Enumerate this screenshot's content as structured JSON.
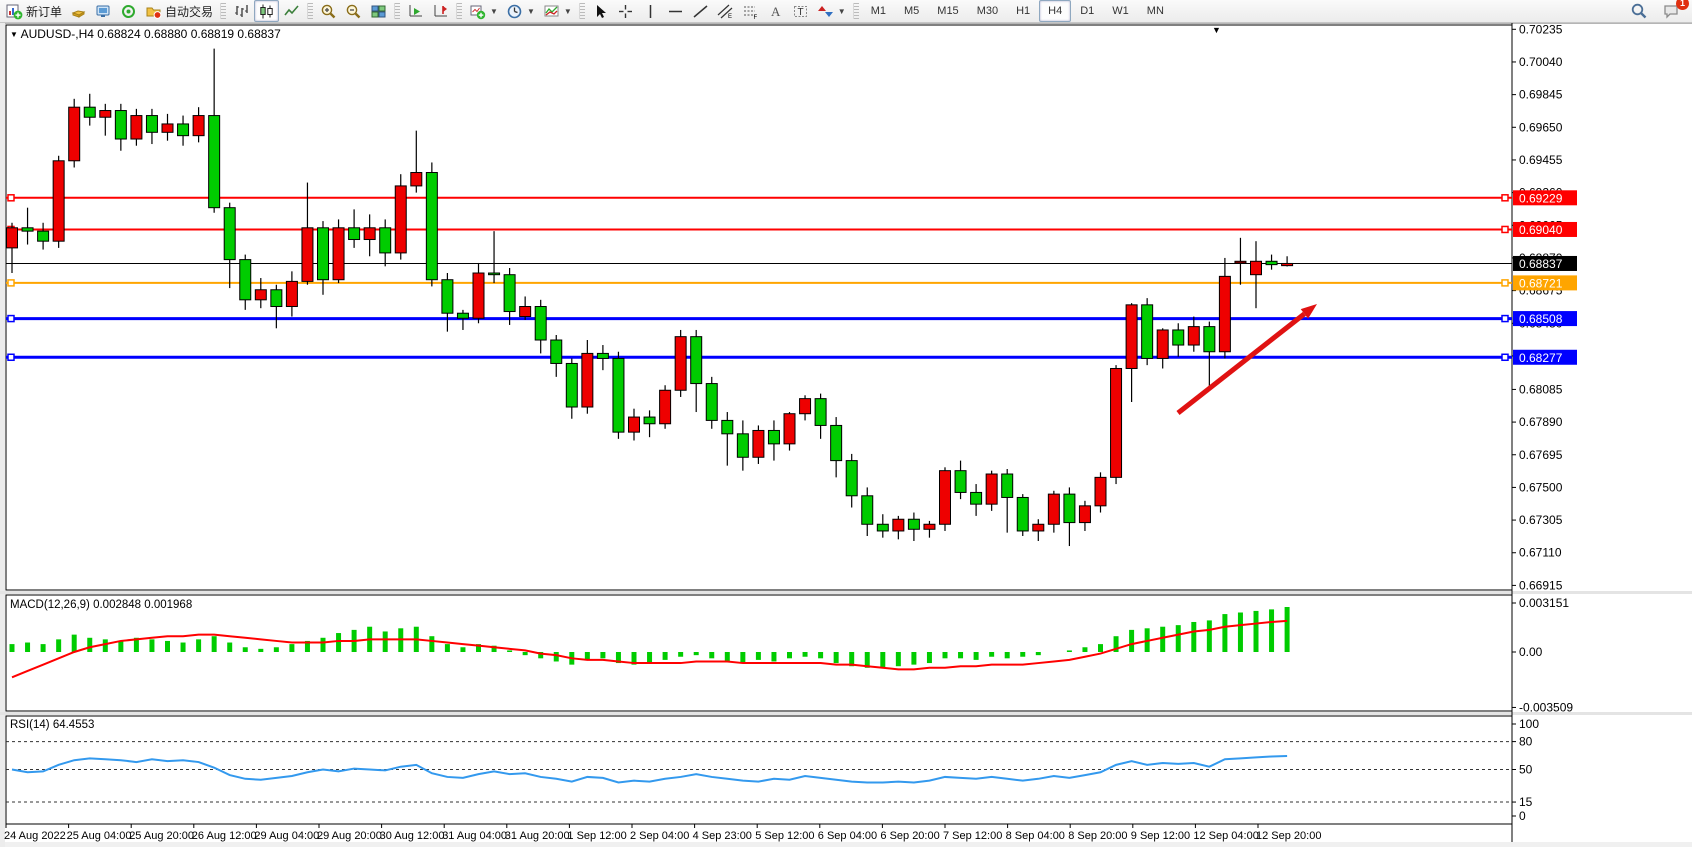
{
  "toolbar": {
    "groups": [
      {
        "name": "trade",
        "buttons": [
          {
            "icon": "new-order",
            "label": "新订单"
          },
          {
            "icon": "market-watch"
          },
          {
            "icon": "navigator"
          },
          {
            "icon": "terminal"
          },
          {
            "icon": "autotrading",
            "label": "自动交易"
          }
        ]
      },
      {
        "name": "chart-type",
        "buttons": [
          {
            "icon": "bar-chart"
          },
          {
            "icon": "candlestick",
            "active": true
          },
          {
            "icon": "line-chart"
          }
        ]
      },
      {
        "name": "zoom",
        "buttons": [
          {
            "icon": "zoom-in"
          },
          {
            "icon": "zoom-out"
          },
          {
            "icon": "tile-windows"
          }
        ]
      },
      {
        "name": "scroll",
        "buttons": [
          {
            "icon": "auto-scroll"
          },
          {
            "icon": "chart-shift"
          }
        ]
      },
      {
        "name": "new",
        "buttons": [
          {
            "icon": "new-chart",
            "dropdown": true
          },
          {
            "icon": "periods",
            "dropdown": true
          },
          {
            "icon": "templates",
            "dropdown": true
          }
        ]
      },
      {
        "name": "drawing",
        "buttons": [
          {
            "icon": "cursor"
          },
          {
            "icon": "crosshair"
          },
          {
            "icon": "vertical-line"
          },
          {
            "icon": "horizontal-line"
          },
          {
            "icon": "trendline"
          },
          {
            "icon": "equidistant-channel"
          },
          {
            "icon": "fibonacci"
          },
          {
            "icon": "text"
          },
          {
            "icon": "text-label"
          },
          {
            "icon": "shapes",
            "dropdown": true
          }
        ]
      },
      {
        "name": "timeframes",
        "buttons": [
          {
            "label": "M1"
          },
          {
            "label": "M5"
          },
          {
            "label": "M15"
          },
          {
            "label": "M30"
          },
          {
            "label": "H1"
          },
          {
            "label": "H4",
            "active": true
          },
          {
            "label": "D1"
          },
          {
            "label": "W1"
          },
          {
            "label": "MN"
          }
        ]
      }
    ],
    "right_buttons": [
      {
        "icon": "search"
      },
      {
        "icon": "chat",
        "badge": "1"
      }
    ]
  },
  "chart": {
    "title": "AUDUSD-,H4 0.68824 0.68880 0.68819 0.68837",
    "macd_label": "MACD(12,26,9) 0.002848 0.001968",
    "rsi_label": "RSI(14) 64.4553"
  },
  "chart_data": {
    "type": "candlestick",
    "symbol": "AUDUSD-,H4",
    "timeframe": "H4",
    "last_ohlc": {
      "open": "0.68824",
      "high": "0.68880",
      "low": "0.68819",
      "close": "0.68837"
    },
    "up_color": "#EE0000",
    "down_color": "#00CC00",
    "price_axis_ticks": [
      "0.70235",
      "0.70040",
      "0.69845",
      "0.69650",
      "0.69455",
      "0.69260",
      "0.69065",
      "0.68870",
      "0.68675",
      "0.68480",
      "0.68285",
      "0.68085",
      "0.67890",
      "0.67695",
      "0.67500",
      "0.67305",
      "0.67110",
      "0.66915"
    ],
    "hlines": [
      {
        "price": "0.69229",
        "value": 0.69229,
        "color": "#FF0000",
        "width": 2
      },
      {
        "price": "0.69040",
        "value": 0.6904,
        "color": "#FF0000",
        "width": 2
      },
      {
        "price": "0.68721",
        "value": 0.68721,
        "color": "#FFA500",
        "width": 2
      },
      {
        "price": "0.68508",
        "value": 0.68508,
        "color": "#0000FF",
        "width": 3
      },
      {
        "price": "0.68277",
        "value": 0.68277,
        "color": "#0000FF",
        "width": 3
      }
    ],
    "current_price": {
      "price": "0.68837",
      "value": 0.68837,
      "color": "#000000"
    },
    "x_labels": [
      "24 Aug 2022",
      "25 Aug 04:00",
      "25 Aug 20:00",
      "26 Aug 12:00",
      "29 Aug 04:00",
      "29 Aug 20:00",
      "30 Aug 12:00",
      "31 Aug 04:00",
      "31 Aug 20:00",
      "1 Sep 12:00",
      "2 Sep 04:00",
      "4 Sep 23:00",
      "5 Sep 12:00",
      "6 Sep 04:00",
      "6 Sep 20:00",
      "7 Sep 12:00",
      "8 Sep 04:00",
      "8 Sep 20:00",
      "9 Sep 12:00",
      "12 Sep 04:00",
      "12 Sep 20:00"
    ],
    "ohlc": [
      [
        0.6893,
        0.6908,
        0.6878,
        0.6905
      ],
      [
        0.6905,
        0.6917,
        0.6895,
        0.6903
      ],
      [
        0.6903,
        0.6908,
        0.6892,
        0.6897
      ],
      [
        0.6897,
        0.6948,
        0.6893,
        0.6945
      ],
      [
        0.6945,
        0.6982,
        0.6941,
        0.6977
      ],
      [
        0.6977,
        0.6985,
        0.6966,
        0.6971
      ],
      [
        0.6971,
        0.6979,
        0.696,
        0.6975
      ],
      [
        0.6975,
        0.6979,
        0.6951,
        0.6958
      ],
      [
        0.6958,
        0.6976,
        0.6954,
        0.6972
      ],
      [
        0.6972,
        0.6976,
        0.6955,
        0.6962
      ],
      [
        0.6962,
        0.6973,
        0.6957,
        0.6967
      ],
      [
        0.6967,
        0.6972,
        0.6954,
        0.696
      ],
      [
        0.696,
        0.6977,
        0.6956,
        0.6972
      ],
      [
        0.6972,
        0.7012,
        0.6914,
        0.6917
      ],
      [
        0.6917,
        0.692,
        0.6869,
        0.6886
      ],
      [
        0.6886,
        0.6889,
        0.6856,
        0.6862
      ],
      [
        0.6862,
        0.6875,
        0.6857,
        0.6868
      ],
      [
        0.6868,
        0.6871,
        0.6845,
        0.6858
      ],
      [
        0.6858,
        0.6879,
        0.6852,
        0.6873
      ],
      [
        0.6873,
        0.6932,
        0.6871,
        0.6905
      ],
      [
        0.6905,
        0.6909,
        0.6865,
        0.6874
      ],
      [
        0.6874,
        0.691,
        0.6872,
        0.6905
      ],
      [
        0.6905,
        0.6916,
        0.6893,
        0.6898
      ],
      [
        0.6898,
        0.6913,
        0.6888,
        0.6905
      ],
      [
        0.6905,
        0.691,
        0.6882,
        0.689
      ],
      [
        0.689,
        0.6937,
        0.6886,
        0.693
      ],
      [
        0.693,
        0.6963,
        0.6926,
        0.6938
      ],
      [
        0.6938,
        0.6944,
        0.687,
        0.6874
      ],
      [
        0.6874,
        0.6878,
        0.6843,
        0.6854
      ],
      [
        0.6854,
        0.6856,
        0.6844,
        0.6851
      ],
      [
        0.6851,
        0.6884,
        0.6848,
        0.6878
      ],
      [
        0.6878,
        0.6903,
        0.6872,
        0.6877
      ],
      [
        0.6877,
        0.6881,
        0.6847,
        0.6855
      ],
      [
        0.6852,
        0.6864,
        0.685,
        0.6858
      ],
      [
        0.6858,
        0.6862,
        0.683,
        0.6838
      ],
      [
        0.6838,
        0.6841,
        0.6816,
        0.6824
      ],
      [
        0.6824,
        0.6827,
        0.6791,
        0.6798
      ],
      [
        0.6798,
        0.6838,
        0.6794,
        0.683
      ],
      [
        0.683,
        0.6835,
        0.682,
        0.6827
      ],
      [
        0.6827,
        0.6831,
        0.6779,
        0.6783
      ],
      [
        0.6783,
        0.6797,
        0.6778,
        0.6792
      ],
      [
        0.6792,
        0.6796,
        0.678,
        0.6788
      ],
      [
        0.6788,
        0.6811,
        0.6785,
        0.6808
      ],
      [
        0.6808,
        0.6844,
        0.6804,
        0.684
      ],
      [
        0.684,
        0.6844,
        0.6795,
        0.6812
      ],
      [
        0.6812,
        0.6816,
        0.6785,
        0.679
      ],
      [
        0.679,
        0.6795,
        0.6763,
        0.6782
      ],
      [
        0.6782,
        0.679,
        0.676,
        0.6768
      ],
      [
        0.6768,
        0.6787,
        0.6764,
        0.6784
      ],
      [
        0.6784,
        0.679,
        0.6766,
        0.6776
      ],
      [
        0.6776,
        0.6795,
        0.6772,
        0.6794
      ],
      [
        0.6794,
        0.6805,
        0.679,
        0.6803
      ],
      [
        0.6803,
        0.6806,
        0.6779,
        0.6787
      ],
      [
        0.6787,
        0.6792,
        0.6756,
        0.6766
      ],
      [
        0.6766,
        0.677,
        0.6738,
        0.6745
      ],
      [
        0.6745,
        0.675,
        0.6721,
        0.6728
      ],
      [
        0.6728,
        0.6734,
        0.672,
        0.6724
      ],
      [
        0.6724,
        0.6733,
        0.6719,
        0.6731
      ],
      [
        0.6731,
        0.6735,
        0.6718,
        0.6725
      ],
      [
        0.6725,
        0.673,
        0.672,
        0.6728
      ],
      [
        0.6728,
        0.6762,
        0.6724,
        0.676
      ],
      [
        0.676,
        0.6766,
        0.6743,
        0.6747
      ],
      [
        0.6747,
        0.6752,
        0.6733,
        0.674
      ],
      [
        0.674,
        0.676,
        0.6736,
        0.6758
      ],
      [
        0.6758,
        0.6761,
        0.6723,
        0.6744
      ],
      [
        0.6744,
        0.6746,
        0.6721,
        0.6724
      ],
      [
        0.6724,
        0.6731,
        0.6718,
        0.6728
      ],
      [
        0.6728,
        0.6748,
        0.6723,
        0.6746
      ],
      [
        0.6746,
        0.675,
        0.6715,
        0.6729
      ],
      [
        0.6729,
        0.6742,
        0.6724,
        0.6739
      ],
      [
        0.6739,
        0.6759,
        0.6735,
        0.6756
      ],
      [
        0.6756,
        0.6823,
        0.6752,
        0.6821
      ],
      [
        0.6821,
        0.686,
        0.6801,
        0.6859
      ],
      [
        0.6859,
        0.6863,
        0.6823,
        0.6827
      ],
      [
        0.6827,
        0.6845,
        0.6821,
        0.6844
      ],
      [
        0.6844,
        0.6848,
        0.6828,
        0.6835
      ],
      [
        0.6835,
        0.6852,
        0.6831,
        0.6846
      ],
      [
        0.6846,
        0.6849,
        0.681,
        0.6831
      ],
      [
        0.6831,
        0.6887,
        0.6827,
        0.6876
      ],
      [
        0.6884,
        0.6899,
        0.6871,
        0.6885
      ],
      [
        0.6877,
        0.6897,
        0.6857,
        0.6885
      ],
      [
        0.6885,
        0.6889,
        0.688,
        0.6883
      ],
      [
        0.68824,
        0.6888,
        0.68819,
        0.68837
      ]
    ],
    "macd": {
      "axis_ticks": [
        "0.003151",
        "0.00",
        "-0.003509"
      ],
      "axis_values": [
        0.003151,
        0,
        -0.003509
      ],
      "hist": [
        0.0005,
        0.0006,
        0.0005,
        0.0008,
        0.0011,
        0.0009,
        0.0008,
        0.0007,
        0.0009,
        0.0008,
        0.0007,
        0.0006,
        0.0008,
        0.001,
        0.0006,
        0.0003,
        0.0002,
        0.0003,
        0.0005,
        0.0007,
        0.0009,
        0.0012,
        0.0014,
        0.0016,
        0.0013,
        0.0015,
        0.0016,
        0.001,
        0.0005,
        0.0003,
        0.0005,
        0.0004,
        0.0001,
        -0.0002,
        -0.0004,
        -0.0006,
        -0.0008,
        -0.0005,
        -0.0004,
        -0.0007,
        -0.0008,
        -0.0007,
        -0.0005,
        -0.0003,
        -0.0002,
        -0.0004,
        -0.0006,
        -0.0007,
        -0.0005,
        -0.0006,
        -0.0004,
        -0.0003,
        -0.0004,
        -0.0007,
        -0.0009,
        -0.001,
        -0.001,
        -0.0009,
        -0.0008,
        -0.0007,
        -0.0004,
        -0.0004,
        -0.0005,
        -0.0003,
        -0.0004,
        -0.0003,
        -0.0002,
        0.0,
        0.0001,
        0.0003,
        0.0005,
        0.001,
        0.0014,
        0.0015,
        0.0016,
        0.0017,
        0.0019,
        0.002,
        0.0024,
        0.0025,
        0.0026,
        0.0027,
        0.002848
      ],
      "signal": [
        -0.0016,
        -0.0012,
        -0.0008,
        -0.0004,
        0.0,
        0.0003,
        0.0005,
        0.0007,
        0.0008,
        0.0009,
        0.001,
        0.001,
        0.0011,
        0.0011,
        0.001,
        0.0009,
        0.0008,
        0.0007,
        0.0006,
        0.0006,
        0.0006,
        0.0007,
        0.0007,
        0.0008,
        0.0008,
        0.0008,
        0.0008,
        0.0007,
        0.0006,
        0.0005,
        0.0004,
        0.0003,
        0.0002,
        0.0001,
        -0.0001,
        -0.0002,
        -0.0004,
        -0.0005,
        -0.0005,
        -0.0006,
        -0.0007,
        -0.0007,
        -0.0007,
        -0.0007,
        -0.0006,
        -0.0006,
        -0.0006,
        -0.0007,
        -0.0007,
        -0.0007,
        -0.0007,
        -0.0007,
        -0.0007,
        -0.0008,
        -0.0008,
        -0.0009,
        -0.001,
        -0.0011,
        -0.0011,
        -0.001,
        -0.001,
        -0.0009,
        -0.0009,
        -0.0008,
        -0.0008,
        -0.0008,
        -0.0007,
        -0.0006,
        -0.0005,
        -0.0003,
        -0.0001,
        0.0002,
        0.0005,
        0.0007,
        0.0009,
        0.0011,
        0.0013,
        0.0014,
        0.0016,
        0.0017,
        0.0018,
        0.0019,
        0.001968
      ],
      "hist_color": "#00CC00",
      "signal_color": "#FF0000"
    },
    "rsi": {
      "axis_ticks": [
        "100",
        "80",
        "50",
        "15",
        "0"
      ],
      "axis_values": [
        100,
        80,
        50,
        15,
        0
      ],
      "levels": [
        80,
        50,
        15
      ],
      "values": [
        50,
        47,
        48,
        55,
        60,
        62,
        61,
        60,
        58,
        61,
        59,
        60,
        58,
        52,
        44,
        40,
        39,
        41,
        43,
        47,
        50,
        48,
        51,
        50,
        49,
        53,
        55,
        46,
        42,
        41,
        45,
        48,
        45,
        46,
        42,
        40,
        37,
        42,
        41,
        36,
        38,
        37,
        40,
        42,
        45,
        42,
        40,
        38,
        37,
        40,
        39,
        43,
        41,
        39,
        37,
        36,
        36,
        37,
        36,
        38,
        42,
        41,
        40,
        42,
        40,
        38,
        40,
        43,
        41,
        44,
        47,
        55,
        59,
        55,
        57,
        56,
        57,
        53,
        61,
        62,
        63,
        64,
        64.46
      ],
      "line_color": "#3399EE"
    },
    "arrow": {
      "from": [
        1178,
        413
      ],
      "to": [
        1317,
        304
      ],
      "color": "#E01212"
    }
  }
}
